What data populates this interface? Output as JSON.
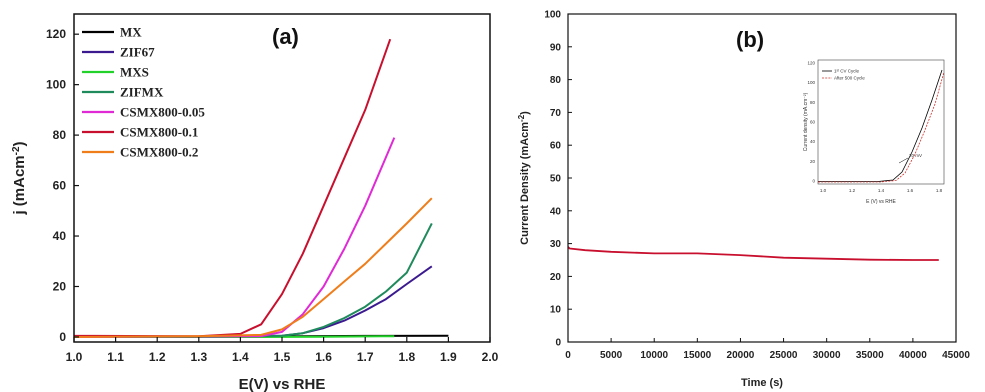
{
  "chart_data": [
    {
      "type": "line",
      "panel_label": "(a)",
      "xlabel": "E(V) vs RHE",
      "ylabel": "j (mAcm",
      "ylabel_sup": "-2",
      "ylabel_close": ")",
      "xlim": [
        1.0,
        2.0
      ],
      "ylim": [
        -2,
        128
      ],
      "xticks": [
        "1.0",
        "1.1",
        "1.2",
        "1.3",
        "1.4",
        "1.5",
        "1.6",
        "1.7",
        "1.8",
        "1.9",
        "2.0"
      ],
      "yticks": [
        "0",
        "20",
        "40",
        "60",
        "80",
        "100",
        "120"
      ],
      "legend_position": "top-left",
      "series": [
        {
          "name": "MX",
          "color": "#000000",
          "points": [
            [
              1.0,
              0
            ],
            [
              1.3,
              0
            ],
            [
              1.5,
              0.2
            ],
            [
              1.7,
              0.4
            ],
            [
              1.9,
              0.5
            ]
          ]
        },
        {
          "name": "ZIF67",
          "color": "#3b1a8f",
          "points": [
            [
              1.0,
              0
            ],
            [
              1.3,
              0
            ],
            [
              1.5,
              0.5
            ],
            [
              1.55,
              1.5
            ],
            [
              1.6,
              3.5
            ],
            [
              1.65,
              6.5
            ],
            [
              1.7,
              10.5
            ],
            [
              1.75,
              15
            ],
            [
              1.8,
              21
            ],
            [
              1.86,
              28
            ]
          ]
        },
        {
          "name": "MXS",
          "color": "#22d22a",
          "points": [
            [
              1.0,
              0
            ],
            [
              1.4,
              0
            ],
            [
              1.6,
              0.1
            ],
            [
              1.77,
              0.3
            ]
          ]
        },
        {
          "name": "ZIFMX",
          "color": "#1f8a5c",
          "points": [
            [
              1.0,
              0
            ],
            [
              1.3,
              0
            ],
            [
              1.5,
              0.5
            ],
            [
              1.55,
              1.5
            ],
            [
              1.6,
              4
            ],
            [
              1.65,
              7.5
            ],
            [
              1.7,
              12
            ],
            [
              1.75,
              18
            ],
            [
              1.8,
              25.5
            ],
            [
              1.86,
              45
            ]
          ]
        },
        {
          "name": "CSMX800-0.05",
          "color": "#e02ad6",
          "points": [
            [
              1.0,
              0
            ],
            [
              1.45,
              0.3
            ],
            [
              1.5,
              2
            ],
            [
              1.55,
              9
            ],
            [
              1.6,
              20
            ],
            [
              1.65,
              35
            ],
            [
              1.7,
              52
            ],
            [
              1.77,
              79
            ]
          ]
        },
        {
          "name": "CSMX800-0.1",
          "color": "#c8102e",
          "points": [
            [
              1.0,
              0.4
            ],
            [
              1.05,
              0.4
            ],
            [
              1.3,
              0.3
            ],
            [
              1.4,
              1.2
            ],
            [
              1.45,
              5
            ],
            [
              1.5,
              17
            ],
            [
              1.55,
              33
            ],
            [
              1.6,
              52
            ],
            [
              1.65,
              71
            ],
            [
              1.7,
              90
            ],
            [
              1.76,
              118
            ]
          ]
        },
        {
          "name": "CSMX800-0.2",
          "color": "#ef7d1a",
          "points": [
            [
              1.0,
              0
            ],
            [
              1.3,
              0.3
            ],
            [
              1.45,
              0.8
            ],
            [
              1.5,
              3
            ],
            [
              1.55,
              8
            ],
            [
              1.6,
              15
            ],
            [
              1.65,
              22
            ],
            [
              1.7,
              29
            ],
            [
              1.75,
              37
            ],
            [
              1.8,
              45
            ],
            [
              1.86,
              55
            ]
          ]
        }
      ]
    },
    {
      "type": "line",
      "panel_label": "(b)",
      "xlabel": "Time (s)",
      "ylabel": "Current Density (mAcm",
      "ylabel_sup": "-2",
      "ylabel_close": ")",
      "xlim": [
        0,
        45000
      ],
      "ylim": [
        0,
        100
      ],
      "xticks": [
        "0",
        "5000",
        "10000",
        "15000",
        "20000",
        "25000",
        "30000",
        "35000",
        "40000",
        "45000"
      ],
      "yticks": [
        "0",
        "10",
        "20",
        "30",
        "40",
        "50",
        "60",
        "70",
        "80",
        "90",
        "100"
      ],
      "series": [
        {
          "color": "#c8102e",
          "points": [
            [
              0,
              29
            ],
            [
              200,
              28.5
            ],
            [
              2000,
              28
            ],
            [
              5000,
              27.5
            ],
            [
              10000,
              27
            ],
            [
              15000,
              27
            ],
            [
              20000,
              26.5
            ],
            [
              25000,
              25.7
            ],
            [
              30000,
              25.4
            ],
            [
              35000,
              25.1
            ],
            [
              40000,
              25.0
            ],
            [
              43000,
              25.0
            ]
          ]
        }
      ],
      "inset": {
        "xlabel": "E (V) vs RHE",
        "ylabel": "Current density (mA.cm⁻²)",
        "xticks": [
          "1.0",
          "1.2",
          "1.4",
          "1.6",
          "1.8"
        ],
        "yticks": [
          "0",
          "20",
          "40",
          "60",
          "80",
          "100",
          "120"
        ],
        "legend": [
          "1ˢᵗ CV Cycle",
          "After 500 Cycle"
        ],
        "annotation": "20 mV",
        "series_colors": [
          "#000000",
          "#d0302c"
        ]
      }
    }
  ]
}
